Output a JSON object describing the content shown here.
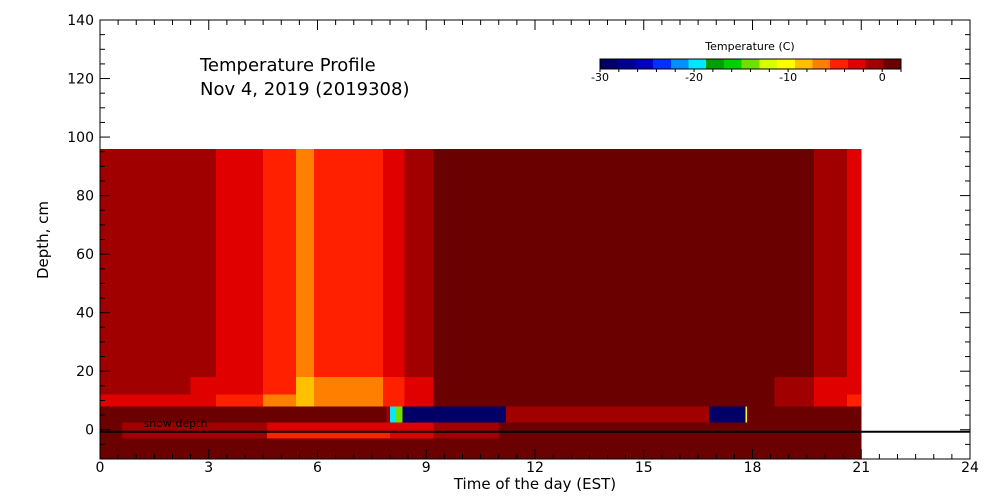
{
  "chart_data": {
    "type": "heatmap",
    "title": "Temperature Profile",
    "subtitle": "Nov  4, 2019 (2019308)",
    "xlabel": "Time of the day (EST)",
    "ylabel": "Depth, cm",
    "xlim": [
      0,
      24
    ],
    "ylim": [
      -10,
      140
    ],
    "x_ticks": [
      0,
      3,
      6,
      9,
      12,
      15,
      18,
      21,
      24
    ],
    "y_ticks": [
      0,
      20,
      40,
      60,
      80,
      100,
      120,
      140
    ],
    "colorbar": {
      "label": "Temperature (C)",
      "range": [
        -30,
        2
      ],
      "ticks": [
        -30,
        -20,
        -10,
        0
      ],
      "colors": [
        "#000066",
        "#000090",
        "#0000c0",
        "#0030ff",
        "#0090ff",
        "#00e8ff",
        "#00a000",
        "#00d000",
        "#70e000",
        "#d8ff00",
        "#ffff00",
        "#ffc000",
        "#ff8000",
        "#ff2000",
        "#e00000",
        "#a00000",
        "#6a0000"
      ]
    },
    "annotation": "snow depth",
    "reference_line_depth": 0,
    "sensor_profile": {
      "depth_range": [
        8,
        96
      ],
      "time_range": [
        0,
        21
      ],
      "segments": [
        {
          "t": [
            0,
            0.9
          ],
          "temp": 0
        },
        {
          "t": [
            0.9,
            2.5
          ],
          "temp": 0
        },
        {
          "t": [
            2.5,
            3.2
          ],
          "temp": -1
        },
        {
          "t": [
            3.2,
            4.5
          ],
          "temp": -2
        },
        {
          "t": [
            4.5,
            5.4
          ],
          "temp": -4
        },
        {
          "t": [
            5.4,
            5.9
          ],
          "temp": -7
        },
        {
          "t": [
            5.9,
            7.8
          ],
          "temp": -5
        },
        {
          "t": [
            7.8,
            8.4
          ],
          "temp": -3
        },
        {
          "t": [
            8.4,
            9.2
          ],
          "temp": -1
        },
        {
          "t": [
            9.2,
            18.6
          ],
          "temp": 2
        },
        {
          "t": [
            18.6,
            19.7
          ],
          "temp": 1
        },
        {
          "t": [
            19.7,
            20.6
          ],
          "temp": -1
        },
        {
          "t": [
            20.6,
            21
          ],
          "temp": -2
        }
      ]
    },
    "surface_layer": {
      "depth_range": [
        2.5,
        8
      ],
      "segments": [
        {
          "t": [
            0,
            7.9
          ],
          "temp": 2
        },
        {
          "t": [
            7.9,
            8.0
          ],
          "temp": -1
        },
        {
          "t": [
            8.0,
            8.15
          ],
          "temp": -20
        },
        {
          "t": [
            8.15,
            8.35
          ],
          "temp": -15
        },
        {
          "t": [
            8.35,
            11.2
          ],
          "temp": -30
        },
        {
          "t": [
            11.2,
            16.8
          ],
          "temp": -1
        },
        {
          "t": [
            16.8,
            17.8
          ],
          "temp": -30
        },
        {
          "t": [
            17.8,
            17.85
          ],
          "temp": -10
        },
        {
          "t": [
            17.85,
            21
          ],
          "temp": 2
        }
      ]
    },
    "subsurface_layers": [
      {
        "depth_range": [
          -0.5,
          2.5
        ],
        "segments": [
          {
            "t": [
              0,
              0.6
            ],
            "temp": 2
          },
          {
            "t": [
              0.6,
              4.6
            ],
            "temp": -1
          },
          {
            "t": [
              4.6,
              9.2
            ],
            "temp": -3
          },
          {
            "t": [
              9.2,
              11.0
            ],
            "temp": -1
          },
          {
            "t": [
              11.0,
              21
            ],
            "temp": 2
          }
        ]
      },
      {
        "depth_range": [
          -3,
          -0.5
        ],
        "segments": [
          {
            "t": [
              0,
              0.6
            ],
            "temp": 2
          },
          {
            "t": [
              0.6,
              4.6
            ],
            "temp": -1
          },
          {
            "t": [
              4.6,
              8.0
            ],
            "temp": -4
          },
          {
            "t": [
              8.0,
              9.2
            ],
            "temp": -3
          },
          {
            "t": [
              9.2,
              11.0
            ],
            "temp": -1
          },
          {
            "t": [
              11.0,
              21
            ],
            "temp": 2
          }
        ]
      },
      {
        "depth_range": [
          -10,
          -3
        ],
        "segments": [
          {
            "t": [
              0,
              21
            ],
            "temp": 2
          }
        ]
      }
    ]
  }
}
